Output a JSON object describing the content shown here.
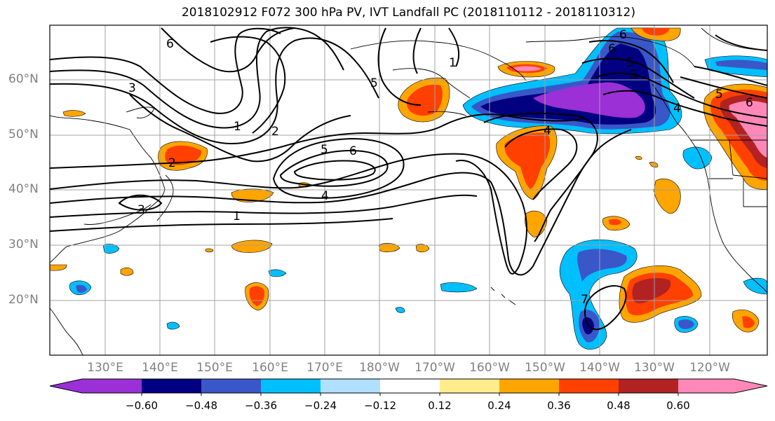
{
  "title": "2018102912 F072 300 hPa PV, IVT Landfall PC (2018110112 - 2018110312)",
  "map": {
    "lat_labels": [
      "60°N",
      "50°N",
      "40°N",
      "30°N",
      "20°N"
    ],
    "lon_labels": [
      "130°E",
      "140°E",
      "150°E",
      "160°E",
      "170°E",
      "180°W",
      "170°W",
      "160°W",
      "150°W",
      "140°W",
      "130°W",
      "120°W"
    ],
    "contour_labels": [
      "6",
      "3",
      "1",
      "2",
      "5",
      "6",
      "4",
      "1",
      "5",
      "2",
      "4",
      "6",
      "5",
      "3",
      "6",
      "7",
      "3",
      "1",
      "5",
      "6",
      "4"
    ]
  },
  "colorbar": {
    "colors": [
      "#9a30d6",
      "#000080",
      "#3a57c8",
      "#00bfff",
      "#b0e0ff",
      "#ffffff",
      "#ffec8c",
      "#ffa500",
      "#ff4000",
      "#b22222",
      "#ff88b8"
    ],
    "tick_labels": [
      "−0.60",
      "−0.48",
      "−0.36",
      "−0.24",
      "−0.12",
      "0.12",
      "0.24",
      "0.36",
      "0.48",
      "0.60"
    ]
  }
}
